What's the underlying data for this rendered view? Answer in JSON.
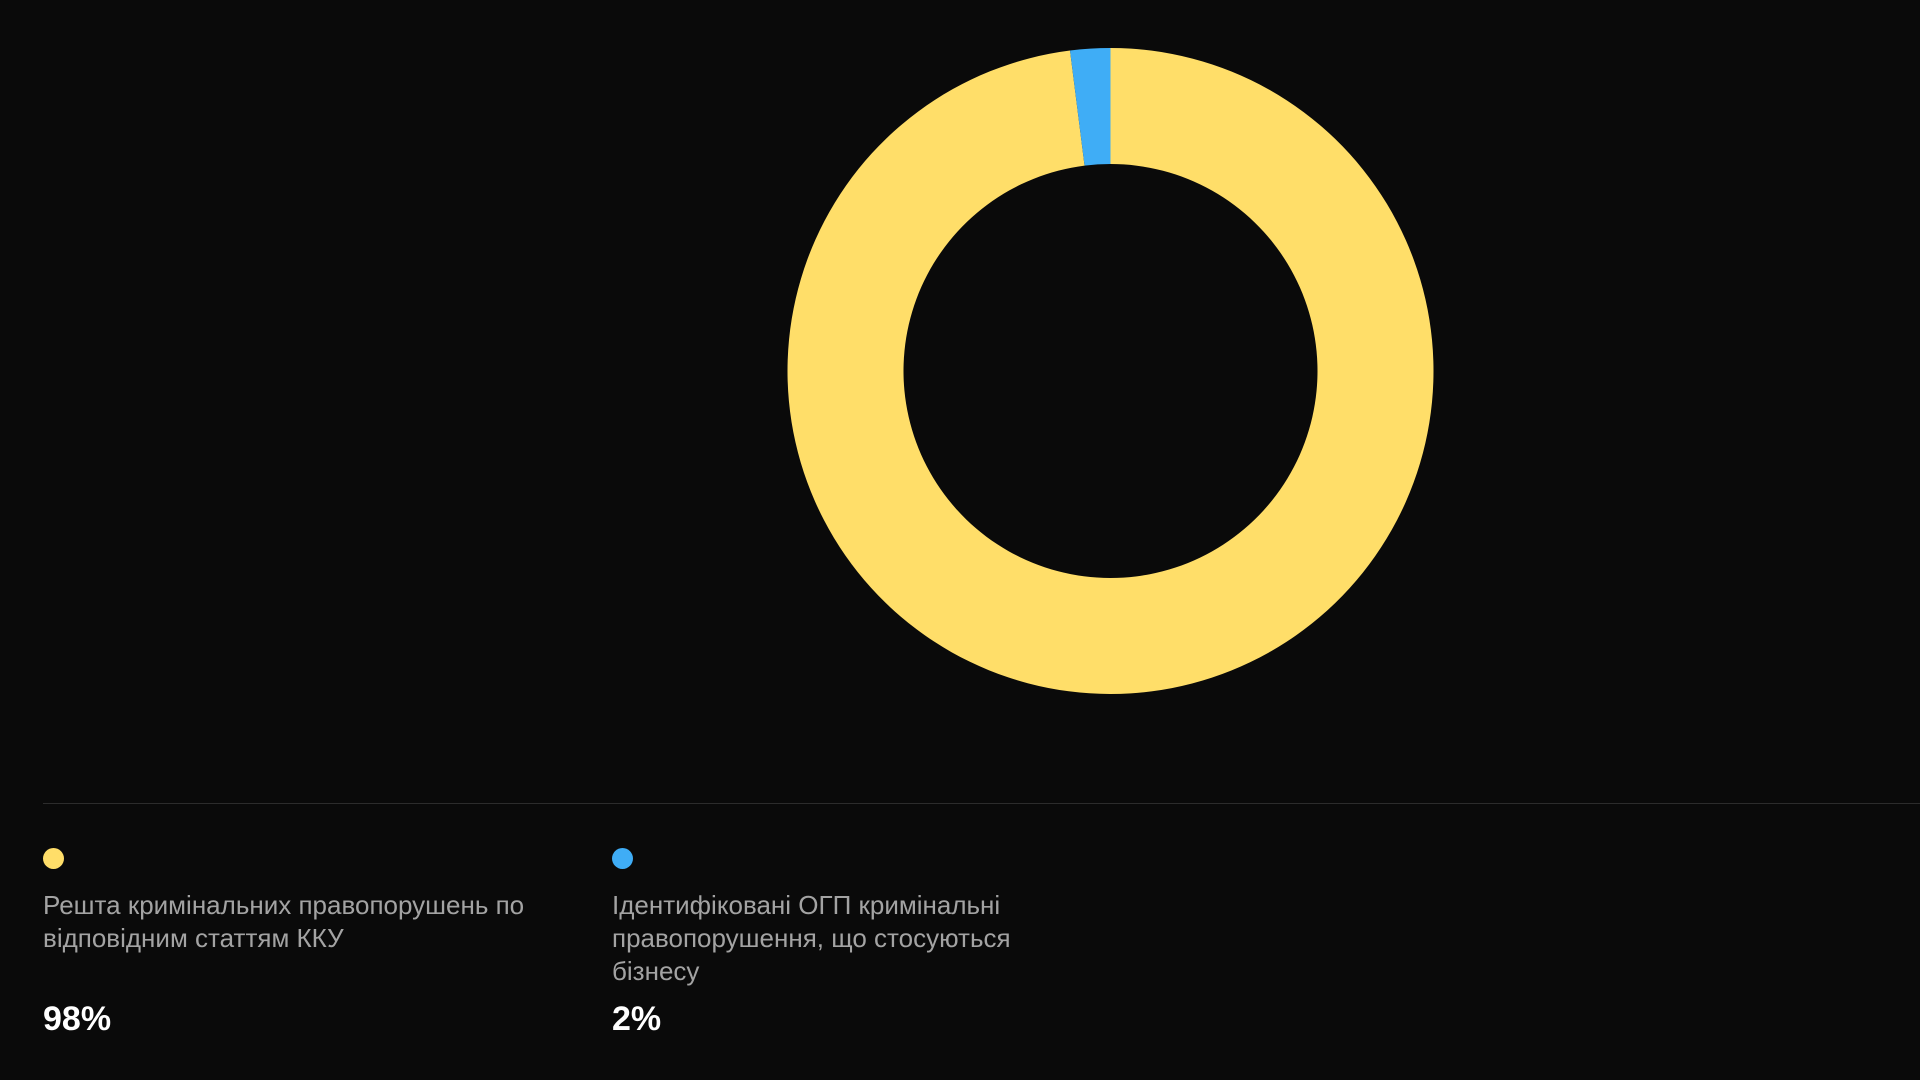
{
  "chart_data": {
    "type": "pie",
    "categories": [
      "Решта кримінальних правопорушень по відповідним статтям ККУ",
      "Ідентифіковані ОГП кримінальні правопорушення, що стосуються бізнесу"
    ],
    "values": [
      98,
      2
    ],
    "value_labels": [
      "98%",
      "2%"
    ],
    "colors": [
      "#ffde69",
      "#3fadf6"
    ],
    "donut": true
  }
}
